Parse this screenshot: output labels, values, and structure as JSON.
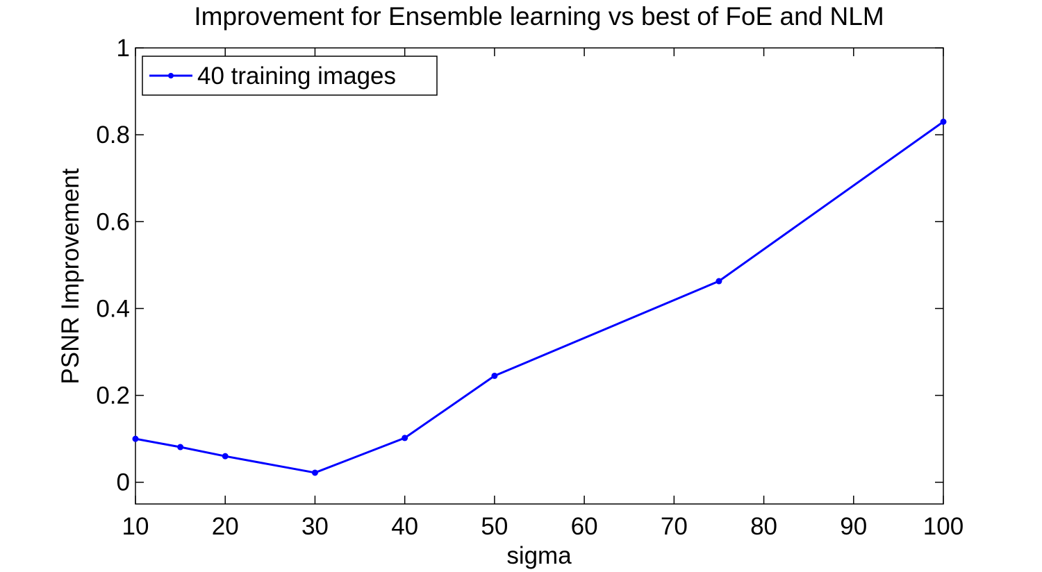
{
  "chart_data": {
    "type": "line",
    "title": "Improvement for Ensemble learning vs best of FoE and NLM",
    "xlabel": "sigma",
    "ylabel": "PSNR Improvement",
    "xlim": [
      10,
      100
    ],
    "ylim": [
      -0.05,
      1
    ],
    "xticks": [
      10,
      20,
      30,
      40,
      50,
      60,
      70,
      80,
      90,
      100
    ],
    "xtick_labels": [
      "10",
      "20",
      "30",
      "40",
      "50",
      "60",
      "70",
      "80",
      "90",
      "100"
    ],
    "yticks": [
      0,
      0.2,
      0.4,
      0.6,
      0.8,
      1
    ],
    "ytick_labels": [
      "0",
      "0.2",
      "0.4",
      "0.6",
      "0.8",
      "1"
    ],
    "grid": false,
    "legend_position": "top-left",
    "series": [
      {
        "name": "40 training images",
        "color": "#0000ff",
        "marker": "dot",
        "x": [
          10,
          15,
          20,
          30,
          40,
          50,
          75,
          100
        ],
        "y": [
          0.1,
          0.081,
          0.06,
          0.022,
          0.102,
          0.245,
          0.463,
          0.83
        ]
      }
    ]
  }
}
